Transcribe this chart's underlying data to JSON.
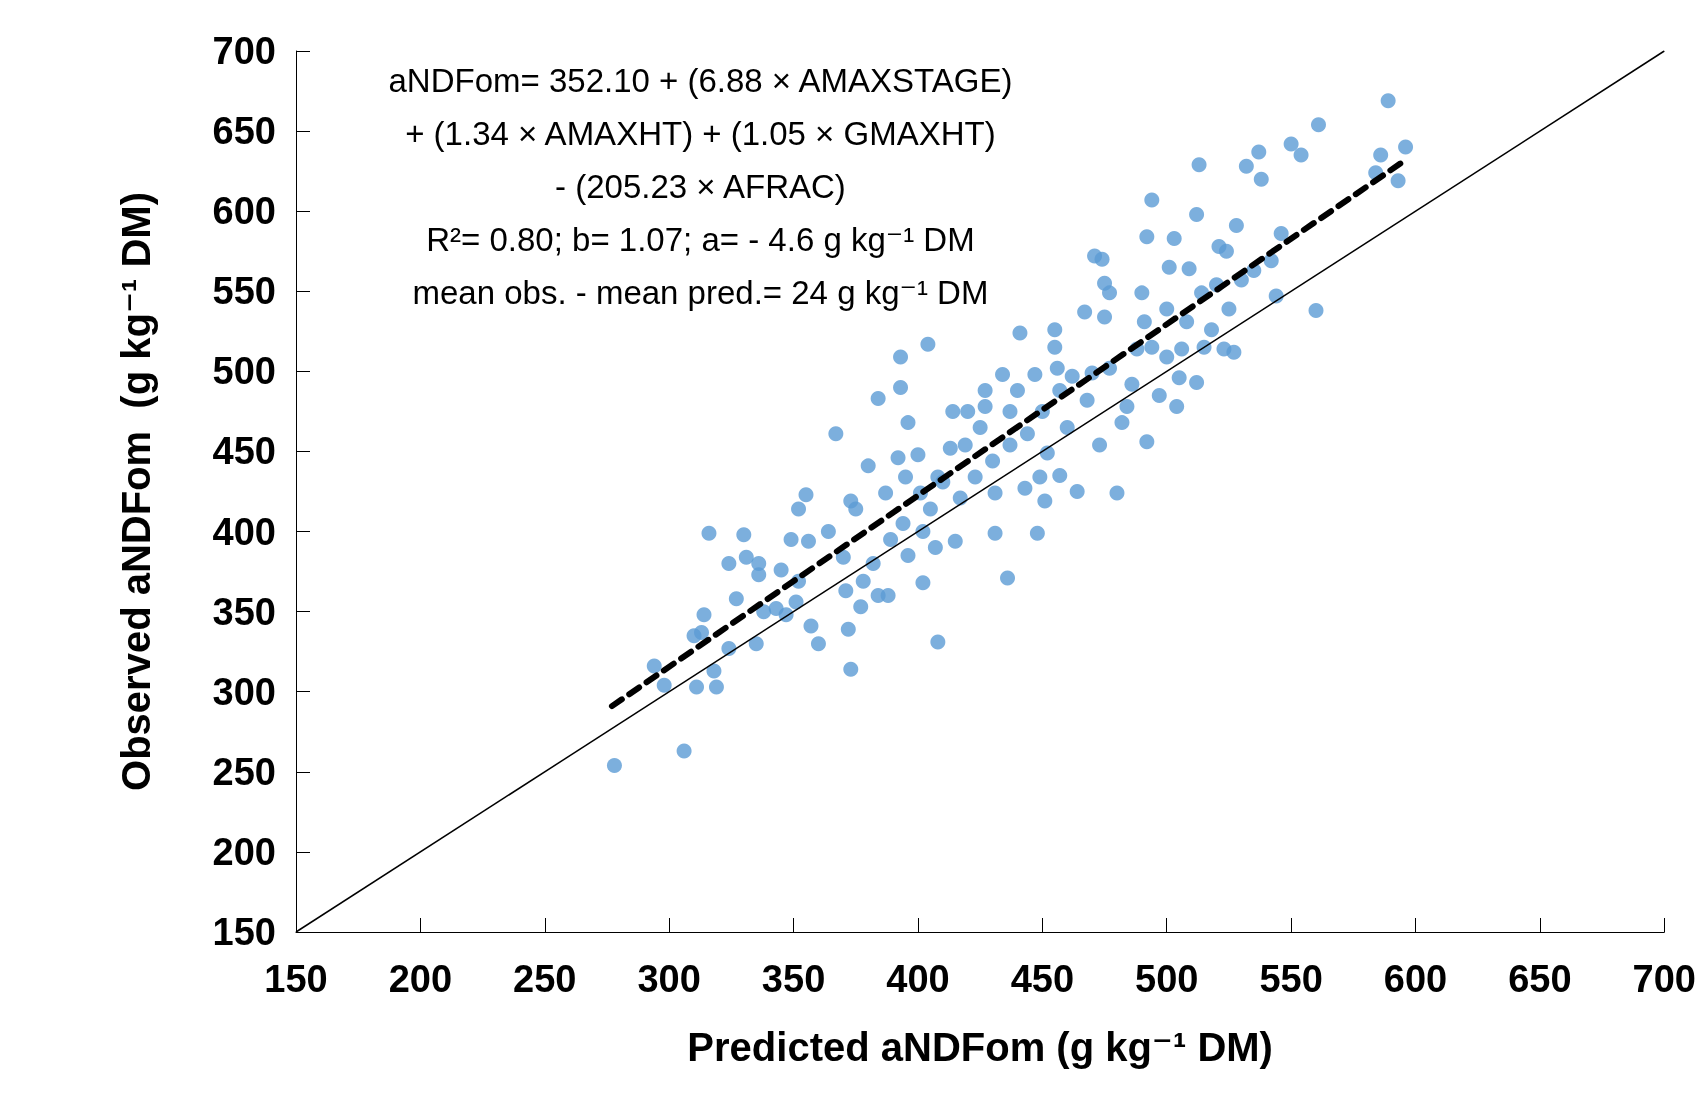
{
  "chart_data": {
    "type": "scatter",
    "xlabel": "Predicted aNDFom (g kg⁻¹ DM)",
    "ylabel": "Observed aNDFom  (g kg⁻¹ DM)",
    "xlim": [
      150,
      700
    ],
    "ylim": [
      150,
      700
    ],
    "xticks": [
      150,
      200,
      250,
      300,
      350,
      400,
      450,
      500,
      550,
      600,
      650,
      700
    ],
    "yticks": [
      150,
      200,
      250,
      300,
      350,
      400,
      450,
      500,
      550,
      600,
      650,
      700
    ],
    "grid": false,
    "annotations": [
      "aNDFom= 352.10 + (6.88 × AMAXSTAGE)",
      "+ (1.34 × AMAXHT) + (1.05 × GMAXHT)",
      "- (205.23 × AFRAC)",
      "R²= 0.80; b= 1.07; a= - 4.6 g kg⁻¹ DM",
      "mean obs. - mean pred.= 24 g kg⁻¹ DM"
    ],
    "series": [
      {
        "color": "#5b9bd5",
        "marker": "circle",
        "x": [
          278,
          306,
          294,
          298,
          311,
          319,
          318,
          314,
          316,
          310,
          313,
          324,
          327,
          324,
          330,
          331,
          335,
          336,
          336,
          338,
          343,
          345,
          347,
          349,
          351,
          352,
          355,
          352,
          357,
          360,
          356,
          364,
          367,
          370,
          372,
          373,
          373,
          375,
          371,
          378,
          380,
          377,
          384,
          384,
          388,
          382,
          387,
          389,
          393,
          393,
          392,
          395,
          396,
          394,
          396,
          400,
          401,
          402,
          404,
          402,
          405,
          408,
          407,
          408,
          410,
          413,
          414,
          415,
          417,
          420,
          419,
          423,
          425,
          427,
          427,
          430,
          431,
          431,
          434,
          436,
          437,
          437,
          440,
          441,
          443,
          444,
          447,
          448,
          449,
          450,
          451,
          452,
          455,
          455,
          456,
          457,
          457,
          460,
          462,
          464,
          467,
          468,
          470,
          471,
          474,
          475,
          477,
          473,
          475,
          477,
          480,
          482,
          484,
          486,
          488,
          490,
          491,
          492,
          492,
          494,
          494,
          497,
          500,
          500,
          501,
          503,
          504,
          505,
          506,
          508,
          509,
          512,
          513,
          514,
          515,
          512,
          518,
          520,
          521,
          523,
          524,
          525,
          527,
          528,
          530,
          532,
          535,
          537,
          538,
          542,
          544,
          546,
          550,
          554,
          560,
          561,
          584,
          586,
          589,
          593,
          596
        ],
        "values": [
          254,
          263,
          316,
          304,
          303,
          303,
          313,
          348,
          399,
          335,
          337,
          327,
          358,
          380,
          398,
          384,
          330,
          380,
          373,
          350,
          352,
          376,
          348,
          395,
          356,
          414,
          423,
          369,
          341,
          330,
          394,
          400,
          461,
          384,
          339,
          314,
          419,
          414,
          363,
          369,
          441,
          353,
          483,
          360,
          360,
          380,
          424,
          395,
          509,
          490,
          446,
          434,
          468,
          405,
          385,
          448,
          424,
          368,
          517,
          400,
          414,
          434,
          390,
          331,
          431,
          452,
          475,
          394,
          421,
          475,
          454,
          434,
          465,
          478,
          488,
          444,
          399,
          424,
          498,
          371,
          454,
          475,
          488,
          524,
          427,
          461,
          498,
          399,
          434,
          475,
          419,
          449,
          526,
          515,
          502,
          435,
          488,
          465,
          497,
          425,
          537,
          482,
          499,
          572,
          570,
          555,
          549,
          454,
          534,
          502,
          424,
          468,
          478,
          492,
          514,
          549,
          531,
          584,
          456,
          607,
          515,
          485,
          539,
          509,
          565,
          583,
          478,
          496,
          514,
          531,
          564,
          598,
          629,
          549,
          515,
          493,
          526,
          554,
          578,
          514,
          575,
          539,
          512,
          591,
          557,
          628,
          563,
          637,
          620,
          569,
          547,
          586,
          642,
          635,
          538,
          654,
          624,
          635,
          669,
          619,
          640
        ]
      },
      {
        "type": "line",
        "color": "#000000",
        "line_style": "solid",
        "x": [
          150,
          700
        ],
        "values": [
          150,
          700
        ]
      },
      {
        "type": "line",
        "color": "#000000",
        "line_style": "dashed",
        "x": [
          277,
          596
        ],
        "values": [
          291,
          632
        ]
      }
    ]
  }
}
